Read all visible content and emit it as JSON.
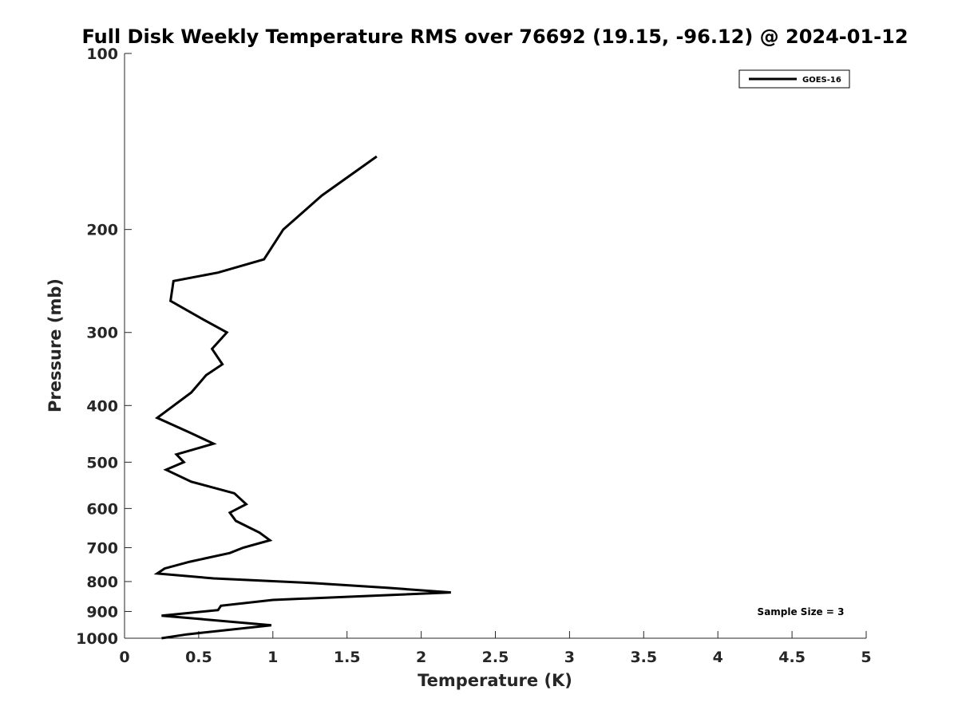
{
  "chart_data": {
    "type": "line",
    "title": "Full Disk Weekly Temperature RMS over 76692 (19.15, -96.12) @ 2024-01-12",
    "xlabel": "Temperature (K)",
    "ylabel": "Pressure (mb)",
    "xlim": [
      0,
      5
    ],
    "ylim": [
      100,
      1000
    ],
    "y_scale": "log",
    "y_reversed": true,
    "x_ticks": [
      0,
      0.5,
      1,
      1.5,
      2,
      2.5,
      3,
      3.5,
      4,
      4.5,
      5
    ],
    "x_tick_labels": [
      "0",
      "0.5",
      "1",
      "1.5",
      "2",
      "2.5",
      "3",
      "3.5",
      "4",
      "4.5",
      "5"
    ],
    "y_ticks": [
      100,
      200,
      300,
      400,
      500,
      600,
      700,
      800,
      900,
      1000
    ],
    "y_tick_labels": [
      "100",
      "200",
      "300",
      "400",
      "500",
      "600",
      "700",
      "800",
      "900",
      "1000"
    ],
    "grid": false,
    "legend_position": "top-right",
    "annotation": "Sample Size = 3",
    "series": [
      {
        "name": "GOES-16",
        "color": "#000000",
        "points": [
          [
            1.7,
            150
          ],
          [
            1.33,
            175
          ],
          [
            1.07,
            200
          ],
          [
            0.94,
            225
          ],
          [
            0.63,
            237
          ],
          [
            0.33,
            245
          ],
          [
            0.31,
            265
          ],
          [
            0.53,
            285
          ],
          [
            0.69,
            300
          ],
          [
            0.59,
            320
          ],
          [
            0.66,
            340
          ],
          [
            0.55,
            355
          ],
          [
            0.45,
            380
          ],
          [
            0.22,
            420
          ],
          [
            0.44,
            445
          ],
          [
            0.6,
            465
          ],
          [
            0.35,
            485
          ],
          [
            0.4,
            500
          ],
          [
            0.28,
            515
          ],
          [
            0.45,
            540
          ],
          [
            0.74,
            565
          ],
          [
            0.82,
            590
          ],
          [
            0.71,
            610
          ],
          [
            0.75,
            630
          ],
          [
            0.91,
            660
          ],
          [
            0.98,
            680
          ],
          [
            0.8,
            700
          ],
          [
            0.71,
            715
          ],
          [
            0.44,
            740
          ],
          [
            0.27,
            760
          ],
          [
            0.22,
            775
          ],
          [
            0.6,
            790
          ],
          [
            1.27,
            805
          ],
          [
            1.77,
            820
          ],
          [
            2.2,
            835
          ],
          [
            1.0,
            860
          ],
          [
            0.65,
            880
          ],
          [
            0.63,
            895
          ],
          [
            0.25,
            915
          ],
          [
            0.99,
            950
          ],
          [
            0.42,
            985
          ],
          [
            0.25,
            1000
          ]
        ]
      }
    ]
  }
}
